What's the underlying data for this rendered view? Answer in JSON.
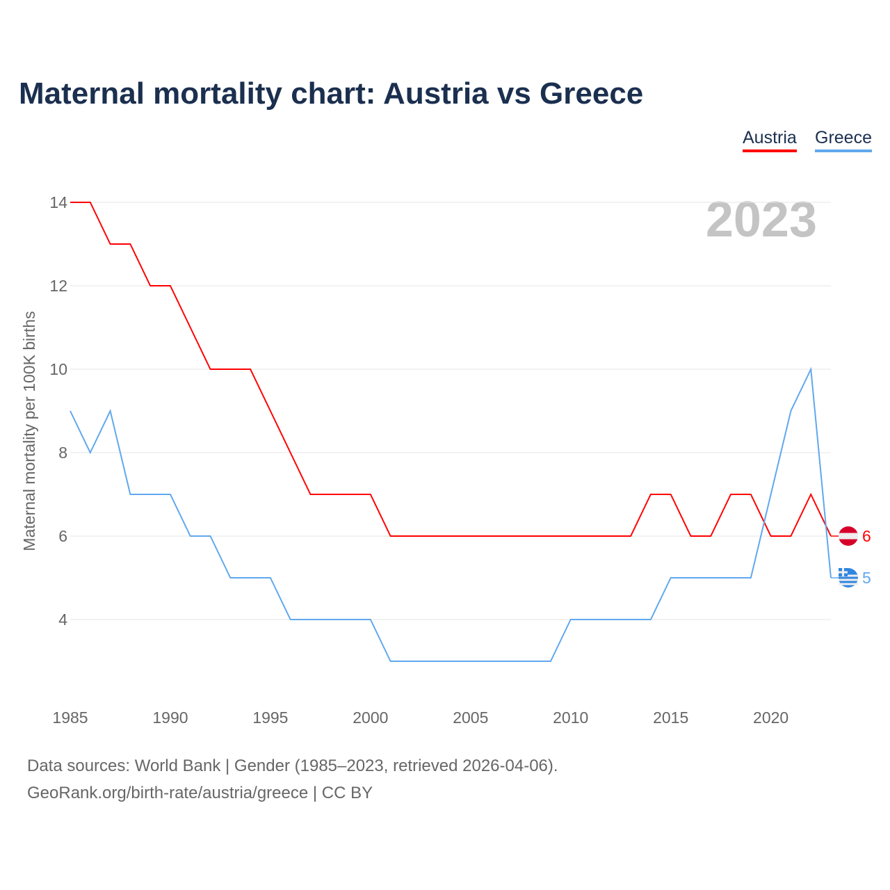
{
  "chart_data": {
    "type": "line",
    "title": "Maternal mortality chart: Austria vs Greece",
    "xlabel": "",
    "ylabel": "Maternal mortality per 100K births",
    "xlim": [
      1985,
      2023
    ],
    "ylim": [
      2,
      14
    ],
    "y_ticks": [
      4,
      6,
      8,
      10,
      12,
      14
    ],
    "x_ticks": [
      1985,
      1990,
      1995,
      2000,
      2005,
      2010,
      2015,
      2020
    ],
    "grid": true,
    "legend_placement": "top-right",
    "year_watermark": "2023",
    "x": [
      1985,
      1986,
      1987,
      1988,
      1989,
      1990,
      1991,
      1992,
      1993,
      1994,
      1995,
      1996,
      1997,
      1998,
      1999,
      2000,
      2001,
      2002,
      2003,
      2004,
      2005,
      2006,
      2007,
      2008,
      2009,
      2010,
      2011,
      2012,
      2013,
      2014,
      2015,
      2016,
      2017,
      2018,
      2019,
      2020,
      2021,
      2022,
      2023
    ],
    "series": [
      {
        "name": "Austria",
        "color": "#ff0000",
        "end_label": "6",
        "values": [
          14,
          14,
          13,
          13,
          12,
          12,
          11,
          10,
          10,
          10,
          9,
          8,
          7,
          7,
          7,
          7,
          6,
          6,
          6,
          6,
          6,
          6,
          6,
          6,
          6,
          6,
          6,
          6,
          6,
          7,
          7,
          6,
          6,
          7,
          7,
          6,
          6,
          7,
          6
        ]
      },
      {
        "name": "Greece",
        "color": "#60a8ee",
        "end_label": "5",
        "values": [
          9,
          8,
          9,
          7,
          7,
          7,
          6,
          6,
          5,
          5,
          5,
          4,
          4,
          4,
          4,
          4,
          3,
          3,
          3,
          3,
          3,
          3,
          3,
          3,
          3,
          4,
          4,
          4,
          4,
          4,
          5,
          5,
          5,
          5,
          5,
          7,
          9,
          10,
          5
        ]
      }
    ]
  },
  "footer": {
    "source": "Data sources: World Bank | Gender (1985–2023, retrieved 2026-04-06).",
    "credit": "GeoRank.org/birth-rate/austria/greece | CC BY"
  }
}
